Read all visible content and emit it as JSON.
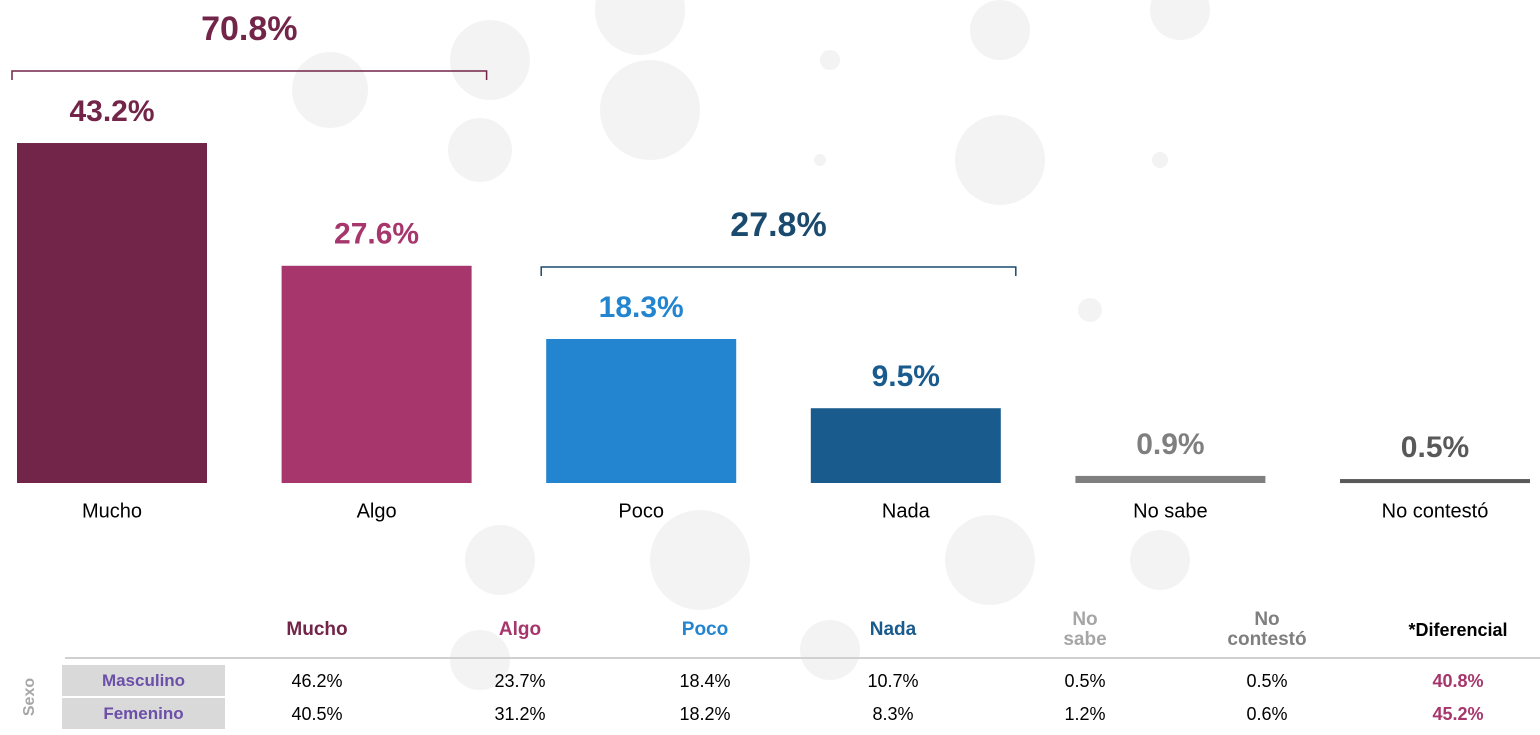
{
  "chart_data": {
    "type": "bar",
    "categories": [
      "Mucho",
      "Algo",
      "Poco",
      "Nada",
      "No sabe",
      "No contestó"
    ],
    "values": [
      43.2,
      27.6,
      18.3,
      9.5,
      0.9,
      0.5
    ],
    "value_labels": [
      "43.2%",
      "27.6%",
      "18.3%",
      "9.5%",
      "0.9%",
      "0.5%"
    ],
    "colors": [
      "#722548",
      "#a6366b",
      "#2385cf",
      "#1a5b8e",
      "#7f7f7f",
      "#595959"
    ],
    "groups": [
      {
        "categories": [
          "Mucho",
          "Algo"
        ],
        "value": 70.8,
        "value_label": "70.8%",
        "color": "#722548"
      },
      {
        "categories": [
          "Poco",
          "Nada"
        ],
        "value": 27.8,
        "value_label": "27.8%",
        "color": "#1a4a6e"
      }
    ]
  },
  "table": {
    "group_label": "Sexo",
    "headers": [
      "Mucho",
      "Algo",
      "Poco",
      "Nada",
      "No sabe",
      "No contestó",
      "*Diferencial"
    ],
    "header_colors": [
      "#722548",
      "#a6366b",
      "#2385cf",
      "#1a5b8e",
      "#a6a6a6",
      "#7f7f7f",
      "#000000"
    ],
    "rows": [
      {
        "label": "Masculino",
        "cells": [
          "46.2%",
          "23.7%",
          "18.4%",
          "10.7%",
          "0.5%",
          "0.5%",
          "40.8%"
        ]
      },
      {
        "label": "Femenino",
        "cells": [
          "40.5%",
          "31.2%",
          "18.2%",
          "8.3%",
          "1.2%",
          "0.6%",
          "45.2%"
        ]
      }
    ]
  }
}
